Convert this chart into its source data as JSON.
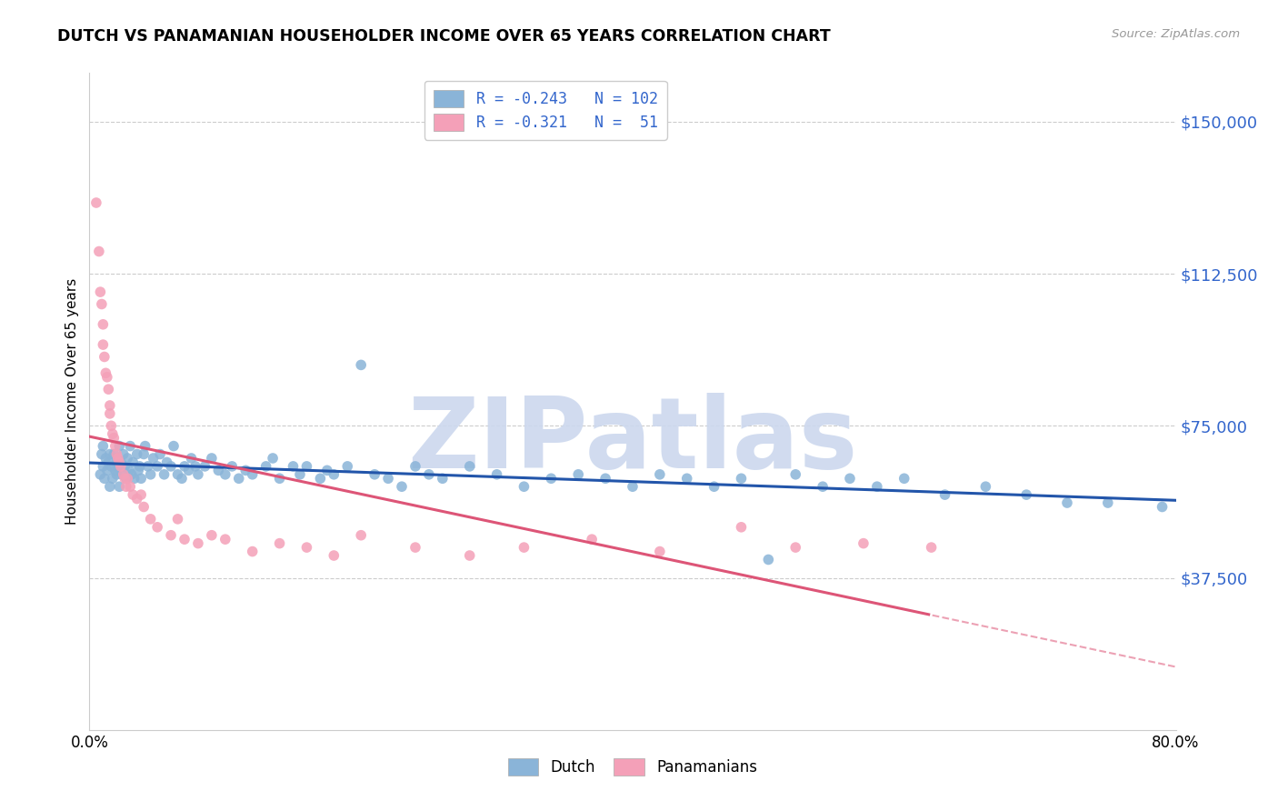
{
  "title": "DUTCH VS PANAMANIAN HOUSEHOLDER INCOME OVER 65 YEARS CORRELATION CHART",
  "source": "Source: ZipAtlas.com",
  "ylabel": "Householder Income Over 65 years",
  "ytick_labels": [
    "$37,500",
    "$75,000",
    "$112,500",
    "$150,000"
  ],
  "ytick_values": [
    37500,
    75000,
    112500,
    150000
  ],
  "ymin": 0,
  "ymax": 162000,
  "xmin": 0.0,
  "xmax": 0.8,
  "dutch_R": -0.243,
  "dutch_N": 102,
  "panamanian_R": -0.321,
  "panamanian_N": 51,
  "dutch_color": "#8ab4d8",
  "panamanian_color": "#f4a0b8",
  "dutch_line_color": "#2255aa",
  "panamanian_line_color": "#dd5577",
  "watermark": "ZIPatlas",
  "watermark_color": "#ccd8ee",
  "dutch_scatter_x": [
    0.008,
    0.009,
    0.01,
    0.01,
    0.011,
    0.012,
    0.013,
    0.014,
    0.015,
    0.015,
    0.016,
    0.017,
    0.018,
    0.019,
    0.02,
    0.02,
    0.021,
    0.022,
    0.022,
    0.023,
    0.024,
    0.025,
    0.026,
    0.027,
    0.028,
    0.029,
    0.03,
    0.031,
    0.032,
    0.033,
    0.035,
    0.036,
    0.037,
    0.038,
    0.04,
    0.041,
    0.043,
    0.045,
    0.047,
    0.05,
    0.052,
    0.055,
    0.057,
    0.06,
    0.062,
    0.065,
    0.068,
    0.07,
    0.073,
    0.075,
    0.078,
    0.08,
    0.085,
    0.09,
    0.095,
    0.1,
    0.105,
    0.11,
    0.115,
    0.12,
    0.13,
    0.135,
    0.14,
    0.15,
    0.155,
    0.16,
    0.17,
    0.175,
    0.18,
    0.19,
    0.2,
    0.21,
    0.22,
    0.23,
    0.24,
    0.25,
    0.26,
    0.28,
    0.3,
    0.32,
    0.34,
    0.36,
    0.38,
    0.4,
    0.42,
    0.44,
    0.46,
    0.48,
    0.5,
    0.52,
    0.54,
    0.56,
    0.58,
    0.6,
    0.63,
    0.66,
    0.69,
    0.72,
    0.75,
    0.79
  ],
  "dutch_scatter_y": [
    63000,
    68000,
    65000,
    70000,
    62000,
    67000,
    64000,
    66000,
    68000,
    60000,
    65000,
    62000,
    68000,
    64000,
    67000,
    63000,
    65000,
    60000,
    70000,
    66000,
    63000,
    68000,
    65000,
    62000,
    67000,
    64000,
    70000,
    63000,
    66000,
    62000,
    68000,
    64000,
    65000,
    62000,
    68000,
    70000,
    65000,
    63000,
    67000,
    65000,
    68000,
    63000,
    66000,
    65000,
    70000,
    63000,
    62000,
    65000,
    64000,
    67000,
    65000,
    63000,
    65000,
    67000,
    64000,
    63000,
    65000,
    62000,
    64000,
    63000,
    65000,
    67000,
    62000,
    65000,
    63000,
    65000,
    62000,
    64000,
    63000,
    65000,
    90000,
    63000,
    62000,
    60000,
    65000,
    63000,
    62000,
    65000,
    63000,
    60000,
    62000,
    63000,
    62000,
    60000,
    63000,
    62000,
    60000,
    62000,
    42000,
    63000,
    60000,
    62000,
    60000,
    62000,
    58000,
    60000,
    58000,
    56000,
    56000,
    55000
  ],
  "panamanian_scatter_x": [
    0.005,
    0.007,
    0.008,
    0.009,
    0.01,
    0.01,
    0.011,
    0.012,
    0.013,
    0.014,
    0.015,
    0.015,
    0.016,
    0.017,
    0.018,
    0.019,
    0.02,
    0.021,
    0.022,
    0.023,
    0.025,
    0.026,
    0.027,
    0.028,
    0.03,
    0.032,
    0.035,
    0.038,
    0.04,
    0.045,
    0.05,
    0.06,
    0.065,
    0.07,
    0.08,
    0.09,
    0.1,
    0.12,
    0.14,
    0.16,
    0.18,
    0.2,
    0.24,
    0.28,
    0.32,
    0.37,
    0.42,
    0.48,
    0.52,
    0.57,
    0.62
  ],
  "panamanian_scatter_y": [
    130000,
    118000,
    108000,
    105000,
    100000,
    95000,
    92000,
    88000,
    87000,
    84000,
    80000,
    78000,
    75000,
    73000,
    72000,
    70000,
    68000,
    67000,
    66000,
    65000,
    63000,
    62000,
    60000,
    62000,
    60000,
    58000,
    57000,
    58000,
    55000,
    52000,
    50000,
    48000,
    52000,
    47000,
    46000,
    48000,
    47000,
    44000,
    46000,
    45000,
    43000,
    48000,
    45000,
    43000,
    45000,
    47000,
    44000,
    50000,
    45000,
    46000,
    45000
  ]
}
